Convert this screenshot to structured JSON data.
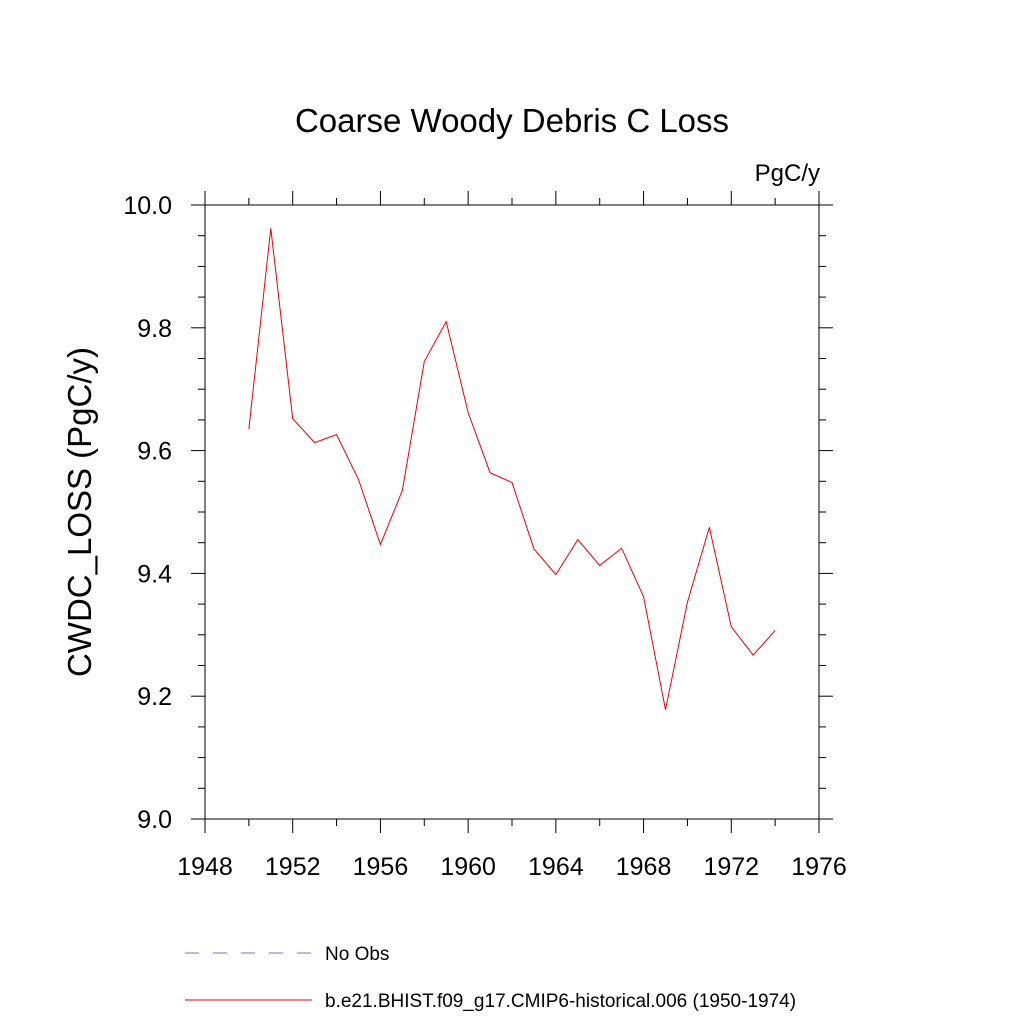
{
  "chart_data": {
    "type": "line",
    "title": "Coarse Woody Debris C Loss",
    "units_label": "PgC/y",
    "ylabel": "CWDC_LOSS  (PgC/y)",
    "xlabel": "",
    "xlim": [
      1948,
      1976
    ],
    "ylim": [
      9.0,
      10.0
    ],
    "x_ticks": [
      1948,
      1952,
      1956,
      1960,
      1964,
      1968,
      1972,
      1976
    ],
    "y_ticks": [
      "9.0",
      "9.2",
      "9.4",
      "9.6",
      "9.8",
      "10.0"
    ],
    "grid": false,
    "series": [
      {
        "name": "No Obs",
        "color": "#7b6fd0",
        "style": "dashed",
        "x": [],
        "values": []
      },
      {
        "name": "b.e21.BHIST.f09_g17.CMIP6-historical.006 (1950-1974)",
        "color": "#e8000b",
        "style": "solid",
        "x": [
          1950,
          1951,
          1952,
          1953,
          1954,
          1955,
          1956,
          1957,
          1958,
          1959,
          1960,
          1961,
          1962,
          1963,
          1964,
          1965,
          1966,
          1967,
          1968,
          1969,
          1970,
          1971,
          1972,
          1973,
          1974
        ],
        "values": [
          9.635,
          9.962,
          9.652,
          9.613,
          9.626,
          9.553,
          9.447,
          9.535,
          9.745,
          9.81,
          9.662,
          9.564,
          9.548,
          9.44,
          9.398,
          9.455,
          9.413,
          9.441,
          9.362,
          9.178,
          9.353,
          9.475,
          9.313,
          9.267,
          9.307
        ]
      }
    ],
    "legend_position": "bottom"
  }
}
